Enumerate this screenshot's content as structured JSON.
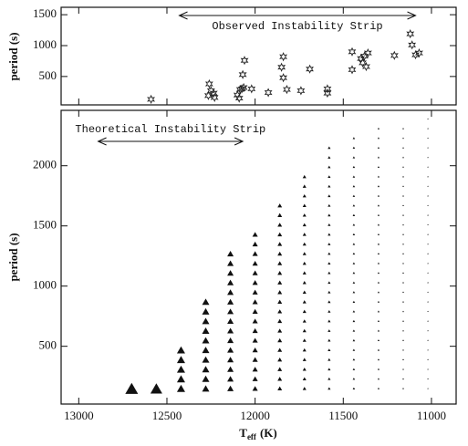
{
  "chart_data": [
    {
      "type": "scatter",
      "ylabel": "period (s)",
      "annotation": {
        "text": "Observed Instability Strip",
        "range": [
          12430,
          11090
        ]
      },
      "x": [
        12590,
        12260,
        12250,
        12265,
        12235,
        12230,
        12100,
        12085,
        12075,
        12065,
        12090,
        12060,
        12070,
        12020,
        11925,
        11850,
        11840,
        11820,
        11840,
        11740,
        11690,
        11590,
        11590,
        11450,
        11450,
        11400,
        11390,
        11380,
        11370,
        11360,
        11210,
        11120,
        11110,
        11090,
        11070
      ],
      "values": [
        130,
        380,
        270,
        190,
        230,
        160,
        200,
        290,
        300,
        320,
        150,
        760,
        530,
        300,
        240,
        650,
        480,
        290,
        820,
        270,
        620,
        300,
        230,
        900,
        610,
        790,
        720,
        830,
        660,
        880,
        840,
        1190,
        1010,
        850,
        880
      ],
      "xlim": [
        13100,
        10860
      ],
      "xticks": [
        13000,
        12500,
        12000,
        11500,
        11000
      ],
      "ylim": [
        40,
        1620
      ],
      "yticks": [
        500,
        1000,
        1500
      ],
      "color": "#222222"
    },
    {
      "type": "strip",
      "ylabel": "period (s)",
      "xlabel": {
        "main": "T",
        "sub": "eff",
        "unit": "(K)"
      },
      "annotation": {
        "text": "Theoretical Instability Strip",
        "range": [
          12890,
          12070
        ]
      },
      "x": [
        12700,
        12560,
        12420,
        12280,
        12140,
        12000,
        11860,
        11720,
        11580,
        11440,
        11300,
        11160,
        11020
      ],
      "values": [
        [
          150
        ],
        [
          150
        ],
        [
          150,
          230,
          310,
          390,
          470
        ],
        [
          150,
          230,
          310,
          390,
          470,
          550,
          630,
          710,
          790,
          870
        ],
        [
          150,
          230,
          310,
          390,
          470,
          550,
          630,
          710,
          790,
          870,
          950,
          1030,
          1110,
          1190,
          1270
        ],
        [
          150,
          230,
          310,
          390,
          470,
          550,
          630,
          710,
          790,
          870,
          950,
          1030,
          1110,
          1190,
          1270,
          1350,
          1430
        ],
        [
          150,
          230,
          310,
          390,
          470,
          550,
          630,
          710,
          790,
          870,
          950,
          1030,
          1110,
          1190,
          1270,
          1350,
          1430,
          1510,
          1590,
          1670
        ],
        [
          150,
          230,
          310,
          390,
          470,
          550,
          630,
          710,
          790,
          870,
          950,
          1030,
          1110,
          1190,
          1270,
          1350,
          1430,
          1510,
          1590,
          1670,
          1750,
          1830,
          1910
        ],
        [
          150,
          230,
          310,
          390,
          470,
          550,
          630,
          710,
          790,
          870,
          950,
          1030,
          1110,
          1190,
          1270,
          1350,
          1430,
          1510,
          1590,
          1670,
          1750,
          1830,
          1910,
          1990,
          2070,
          2150
        ],
        [
          150,
          230,
          310,
          390,
          470,
          550,
          630,
          710,
          790,
          870,
          950,
          1030,
          1110,
          1190,
          1270,
          1350,
          1430,
          1510,
          1590,
          1670,
          1750,
          1830,
          1910,
          1990,
          2070,
          2150,
          2230
        ],
        [
          150,
          230,
          310,
          390,
          470,
          550,
          630,
          710,
          790,
          870,
          950,
          1030,
          1110,
          1190,
          1270,
          1350,
          1430,
          1510,
          1590,
          1670,
          1750,
          1830,
          1910,
          1990,
          2070,
          2150,
          2230,
          2310
        ],
        [
          150,
          230,
          310,
          390,
          470,
          550,
          630,
          710,
          790,
          870,
          950,
          1030,
          1110,
          1190,
          1270,
          1350,
          1430,
          1510,
          1590,
          1670,
          1750,
          1830,
          1910,
          1990,
          2070,
          2150,
          2230,
          2310
        ],
        [
          150,
          230,
          310,
          390,
          470,
          550,
          630,
          710,
          790,
          870,
          950,
          1030,
          1110,
          1190,
          1270,
          1350,
          1430,
          1510,
          1590,
          1670,
          1750,
          1830,
          1910,
          1990,
          2070,
          2150,
          2230,
          2310,
          2390
        ]
      ],
      "xlim": [
        13100,
        10860
      ],
      "xticks": [
        13000,
        12500,
        12000,
        11500,
        11000
      ],
      "ylim": [
        20,
        2460
      ],
      "yticks": [
        500,
        1000,
        1500,
        2000
      ],
      "color": "#111111"
    }
  ]
}
